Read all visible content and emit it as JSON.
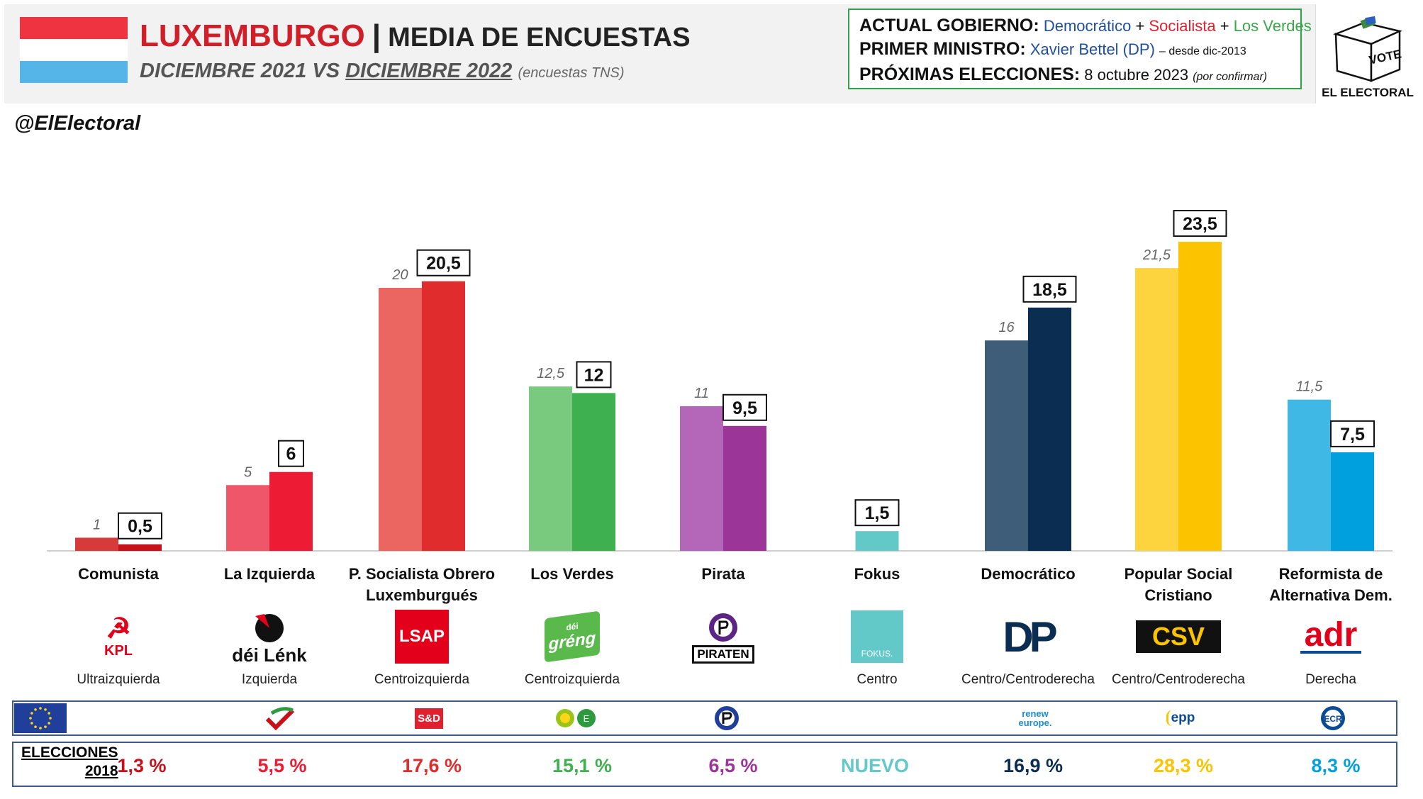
{
  "header": {
    "country": "LUXEMBURGO",
    "separator": "|",
    "title_rest": "MEDIA DE ENCUESTAS",
    "subtitle_a": "DICIEMBRE 2021 VS ",
    "subtitle_b": "DICIEMBRE 2022",
    "subtitle_note": "(encuestas TNS)",
    "handle": "@ElElectoral",
    "flag_colors": [
      "#ef3340",
      "#ffffff",
      "#55b4e8"
    ]
  },
  "government": {
    "gov_label": "ACTUAL GOBIERNO:",
    "gov_parties": [
      {
        "name": "Democrático",
        "color": "#1f4e9c"
      },
      {
        "name": "Socialista",
        "color": "#e0202f"
      },
      {
        "name": "Los Verdes",
        "color": "#3aa84a"
      }
    ],
    "plus": "+",
    "pm_label": "PRIMER MINISTRO:",
    "pm_name": "Xavier Bettel (DP)",
    "pm_since": "– desde dic-2013",
    "elections_label": "PRÓXIMAS ELECCIONES:",
    "elections_date": "8 octubre 2023",
    "elections_note": "(por confirmar)"
  },
  "logo": {
    "vote": "VOTE",
    "brand": "EL ELECTORAL"
  },
  "chart_data": {
    "type": "bar",
    "categories": [
      "Comunista",
      "La Izquierda",
      "P. Socialista Obrero Luxemburgués",
      "Los Verdes",
      "Pirata",
      "Fokus",
      "Democrático",
      "Popular Social Cristiano",
      "Reformista de Alternativa Dem."
    ],
    "series": [
      {
        "name": "",
        "values": [
          1,
          5,
          20,
          12.5,
          11,
          null,
          16,
          21.5,
          11.5
        ]
      },
      {
        "name": "",
        "values": [
          0.5,
          6,
          20.5,
          12,
          9.5,
          1.5,
          18.5,
          23.5,
          7.5
        ]
      }
    ],
    "value_labels_prev": [
      "1",
      "5",
      "20",
      "12,5",
      "11",
      "",
      "16",
      "21,5",
      "11,5"
    ],
    "value_labels_curr": [
      "0,5",
      "6",
      "20,5",
      "12",
      "9,5",
      "1,5",
      "18,5",
      "23,5",
      "7,5"
    ],
    "colors_prev": [
      "#d73a3a",
      "#f0566a",
      "#eb6660",
      "#79c97e",
      "#b467b9",
      "",
      "#3e5d79",
      "#fdd33e",
      "#3fb8e6"
    ],
    "colors_curr": [
      "#c8101a",
      "#ee1b35",
      "#e02c2c",
      "#3fb04f",
      "#9b3598",
      "#63c8c8",
      "#0b2d52",
      "#fcc300",
      "#00a0df"
    ],
    "ylim": [
      0,
      25
    ],
    "grid": false,
    "legend": "none"
  },
  "parties": [
    {
      "label": "Comunista",
      "ideology": "Ultraizquierda",
      "logo_text": "KPL"
    },
    {
      "label": "La Izquierda",
      "ideology": "Izquierda",
      "logo_text": "déi Lénk"
    },
    {
      "label": "P. Socialista Obrero Luxemburgués",
      "ideology": "Centroizquierda",
      "logo_text": "LSAP"
    },
    {
      "label": "Los Verdes",
      "ideology": "Centroizquierda",
      "logo_text": "gréng",
      "logo_small": "déi"
    },
    {
      "label": "Pirata",
      "ideology": "",
      "logo_text": "PIRATEN"
    },
    {
      "label": "Fokus",
      "ideology": "Centro",
      "logo_text": "FOKUS."
    },
    {
      "label": "Democrático",
      "ideology": "Centro/Centroderecha",
      "logo_text": "DP"
    },
    {
      "label": "Popular Social Cristiano",
      "ideology": "Centro/Centroderecha",
      "logo_text": "CSV"
    },
    {
      "label": "Reformista de Alternativa Dem.",
      "ideology": "Derecha",
      "logo_text": "adr"
    }
  ],
  "eu_groups": [
    "",
    "",
    "S&D",
    "",
    "",
    "",
    "renew europe.",
    "epp",
    "ECR"
  ],
  "elections_2018": {
    "label_a": "ELECCIONES",
    "label_b": "2018",
    "values": [
      "1,3 %",
      "5,5 %",
      "17,6 %",
      "15,1 %",
      "6,5 %",
      "NUEVO",
      "16,9 %",
      "28,3 %",
      "8,3 %"
    ],
    "colors": [
      "#c8101a",
      "#ee1b35",
      "#e02c2c",
      "#3fb04f",
      "#9b3598",
      "#63c8c8",
      "#0b2d52",
      "#fcc300",
      "#00a0df"
    ]
  }
}
